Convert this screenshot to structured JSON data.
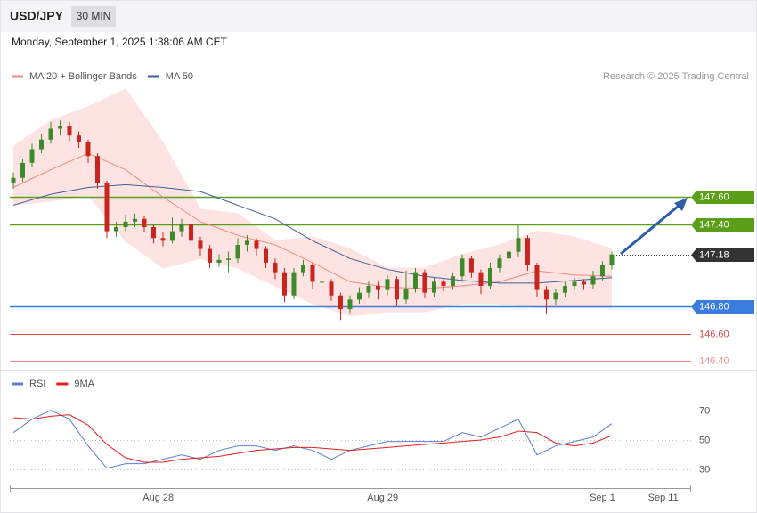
{
  "chart_data": [
    {
      "type": "candlestick",
      "title": "USD/JPY",
      "timeframe": "30 MIN",
      "subtitle": "Monday, September 1, 2025 1:38:06 AM CET",
      "source": "Research © 2025 Trading Central",
      "up_color": "#3d8a2a",
      "down_color": "#c8251f",
      "x": [
        0,
        1,
        2,
        3,
        4,
        5,
        6,
        7,
        8,
        9,
        10,
        11,
        12,
        13,
        14,
        15,
        16,
        17,
        18,
        19,
        20,
        21,
        22,
        23,
        24,
        25,
        26,
        27,
        28,
        29,
        30,
        31,
        32,
        33,
        34,
        35,
        36,
        37,
        38,
        39,
        40,
        41,
        42,
        43,
        44,
        45,
        46,
        47,
        48,
        49,
        50,
        51,
        52,
        53,
        54,
        55,
        56,
        57,
        58,
        59,
        60,
        61,
        62,
        63,
        64
      ],
      "open": [
        147.7,
        147.74,
        147.85,
        147.95,
        148.02,
        148.1,
        148.12,
        148.05,
        148.0,
        147.9,
        147.7,
        147.35,
        147.38,
        147.42,
        147.44,
        147.38,
        147.3,
        147.28,
        147.35,
        147.4,
        147.28,
        147.22,
        147.12,
        147.14,
        147.15,
        147.25,
        147.28,
        147.22,
        147.12,
        147.05,
        146.88,
        147.05,
        147.1,
        146.98,
        146.98,
        146.88,
        146.78,
        146.85,
        146.9,
        146.95,
        146.92,
        147.0,
        146.85,
        146.93,
        147.05,
        146.9,
        146.98,
        146.95,
        147.02,
        147.15,
        147.05,
        146.95,
        147.08,
        147.15,
        147.2,
        147.3,
        147.1,
        146.92,
        146.85,
        146.9,
        146.95,
        146.98,
        146.96,
        147.02,
        147.1
      ],
      "high": [
        147.78,
        147.88,
        147.99,
        148.06,
        148.15,
        148.16,
        148.15,
        148.08,
        148.02,
        147.92,
        147.72,
        147.42,
        147.47,
        147.48,
        147.46,
        147.4,
        147.34,
        147.45,
        147.44,
        147.42,
        147.31,
        147.25,
        147.18,
        147.2,
        147.3,
        147.32,
        147.3,
        147.24,
        147.15,
        147.08,
        147.08,
        147.14,
        147.12,
        147.03,
        147.0,
        146.9,
        146.88,
        146.94,
        146.98,
        146.98,
        147.03,
        147.02,
        147.06,
        147.08,
        147.07,
        147.01,
        147.0,
        147.05,
        147.18,
        147.17,
        147.07,
        147.12,
        147.18,
        147.24,
        147.39,
        147.32,
        147.12,
        146.95,
        146.93,
        146.98,
        147.01,
        147.0,
        147.06,
        147.13,
        147.2
      ],
      "low": [
        147.66,
        147.71,
        147.82,
        147.92,
        147.99,
        148.05,
        148.01,
        147.96,
        147.85,
        147.66,
        147.3,
        147.31,
        147.35,
        147.38,
        147.34,
        147.26,
        147.24,
        147.26,
        147.31,
        147.24,
        147.17,
        147.08,
        147.09,
        147.05,
        147.12,
        147.2,
        147.17,
        147.08,
        147.0,
        146.83,
        146.85,
        147.02,
        146.93,
        146.94,
        146.84,
        146.7,
        146.75,
        146.82,
        146.86,
        146.85,
        146.88,
        146.8,
        146.82,
        146.9,
        146.86,
        146.87,
        146.91,
        146.92,
        146.98,
        147.01,
        146.89,
        146.93,
        147.05,
        147.12,
        147.16,
        147.06,
        146.87,
        146.74,
        146.81,
        146.87,
        146.92,
        146.92,
        146.93,
        146.99,
        147.07
      ],
      "close": [
        147.74,
        147.85,
        147.95,
        148.02,
        148.1,
        148.12,
        148.05,
        148.0,
        147.9,
        147.7,
        147.35,
        147.38,
        147.42,
        147.44,
        147.38,
        147.3,
        147.28,
        147.35,
        147.4,
        147.28,
        147.22,
        147.12,
        147.14,
        147.15,
        147.25,
        147.28,
        147.22,
        147.12,
        147.05,
        146.88,
        147.05,
        147.1,
        146.98,
        146.98,
        146.88,
        146.78,
        146.85,
        146.9,
        146.95,
        146.92,
        147.0,
        146.85,
        146.93,
        147.05,
        146.9,
        146.98,
        146.95,
        147.02,
        147.15,
        147.05,
        146.95,
        147.08,
        147.15,
        147.2,
        147.3,
        147.1,
        146.92,
        146.85,
        146.9,
        146.95,
        146.98,
        146.96,
        147.02,
        147.1,
        147.18
      ],
      "overlays": [
        {
          "name": "MA 20 + Bollinger Bands",
          "color": "#f08a80",
          "band_color": "#fde3e1",
          "x": [
            0,
            4,
            8,
            12,
            16,
            20,
            24,
            28,
            32,
            36,
            40,
            44,
            48,
            52,
            56,
            60,
            64
          ],
          "values": [
            147.67,
            147.8,
            147.92,
            147.8,
            147.6,
            147.42,
            147.32,
            147.25,
            147.12,
            146.98,
            146.94,
            146.93,
            146.95,
            146.98,
            147.06,
            147.03,
            147.02
          ],
          "upper": [
            147.97,
            148.16,
            148.26,
            148.39,
            148.0,
            147.51,
            147.48,
            147.28,
            147.31,
            147.22,
            147.08,
            147.08,
            147.18,
            147.25,
            147.35,
            147.31,
            147.22
          ],
          "lower": [
            147.54,
            147.57,
            147.61,
            147.28,
            147.08,
            147.15,
            147.08,
            146.95,
            146.82,
            146.73,
            146.76,
            146.76,
            146.82,
            146.82,
            146.79,
            146.79,
            146.79
          ]
        },
        {
          "name": "MA 50",
          "color": "#3f5f9e",
          "x": [
            0,
            4,
            8,
            12,
            16,
            20,
            24,
            28,
            32,
            36,
            40,
            44,
            48,
            52,
            56,
            60,
            64
          ],
          "values": [
            147.54,
            147.62,
            147.67,
            147.69,
            147.67,
            147.64,
            147.54,
            147.44,
            147.28,
            147.15,
            147.07,
            147.02,
            146.99,
            146.97,
            146.97,
            146.99,
            147.01
          ]
        }
      ],
      "levels": [
        {
          "value": 147.6,
          "label": "147.60",
          "color": "#5a9e1a",
          "style": "solid",
          "box": true
        },
        {
          "value": 147.4,
          "label": "147.40",
          "color": "#5a9e1a",
          "style": "solid",
          "box": true
        },
        {
          "value": 147.18,
          "label": "147.18",
          "color": "#333333",
          "style": "dotted",
          "box": true
        },
        {
          "value": 146.8,
          "label": "146.80",
          "color": "#3b7ddd",
          "style": "solid",
          "box": true
        },
        {
          "value": 146.6,
          "label": "146.60",
          "color": "#e04848",
          "style": "solid",
          "box": false
        },
        {
          "value": 146.4,
          "label": "146.40",
          "color": "#f09090",
          "style": "solid",
          "box": false
        }
      ],
      "xlim": [
        -0.38,
        72.48
      ],
      "ylim": [
        146.37,
        148.39
      ]
    },
    {
      "type": "line",
      "x": [
        0,
        2,
        4,
        6,
        8,
        10,
        12,
        14,
        16,
        18,
        20,
        22,
        24,
        26,
        28,
        30,
        32,
        34,
        36,
        38,
        40,
        42,
        44,
        46,
        48,
        50,
        52,
        54,
        56,
        58,
        60,
        62,
        64
      ],
      "series": [
        {
          "name": "RSI",
          "color": "#5b7fd6",
          "values": [
            55,
            64,
            70,
            64,
            46,
            31,
            34,
            34,
            37,
            40,
            37,
            43,
            46,
            46,
            43,
            46,
            43,
            37,
            43,
            46,
            49,
            49,
            49,
            49,
            55,
            52,
            58,
            64,
            40,
            46,
            49,
            52,
            61
          ]
        },
        {
          "name": "9MA",
          "color": "#e02020",
          "values": [
            65,
            64,
            66,
            67,
            60,
            47,
            38,
            35,
            35,
            37,
            38,
            39,
            41,
            43,
            44,
            45,
            45,
            44,
            43,
            44,
            45,
            46,
            47,
            48,
            49,
            50,
            52,
            56,
            55,
            48,
            46,
            48,
            53
          ]
        }
      ],
      "xlim": [
        -0.38,
        72.48
      ],
      "ylim": [
        20,
        80
      ],
      "yticks": [
        30,
        50,
        70
      ],
      "xticks": [
        {
          "value": 15.5,
          "label": "Aug 28"
        },
        {
          "value": 39.5,
          "label": "Aug 29"
        },
        {
          "value": 63,
          "label": "Sep 1"
        },
        {
          "value": 69.5,
          "label": "Sep 11"
        }
      ]
    }
  ]
}
